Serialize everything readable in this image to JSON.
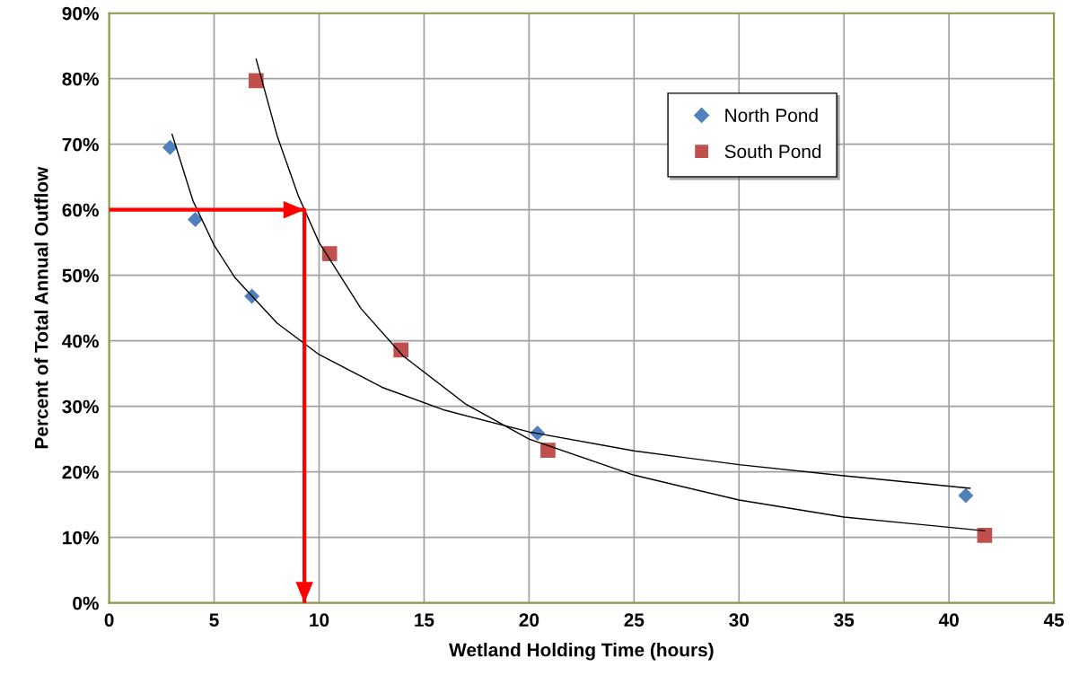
{
  "chart_data": {
    "type": "scatter",
    "xlabel": "Wetland Holding Time (hours)",
    "ylabel": "Percent of Total Annual Outflow",
    "xlim": [
      0,
      45
    ],
    "xticks": [
      0,
      5,
      10,
      15,
      20,
      25,
      30,
      35,
      40,
      45
    ],
    "ylim": [
      0,
      90
    ],
    "yticks": [
      {
        "value": 0,
        "label": "0%"
      },
      {
        "value": 10,
        "label": "10%"
      },
      {
        "value": 20,
        "label": "20%"
      },
      {
        "value": 30,
        "label": "30%"
      },
      {
        "value": 40,
        "label": "40%"
      },
      {
        "value": 50,
        "label": "50%"
      },
      {
        "value": 60,
        "label": "60%"
      },
      {
        "value": 70,
        "label": "70%"
      },
      {
        "value": 80,
        "label": "80%"
      },
      {
        "value": 90,
        "label": "90%"
      }
    ],
    "grid": true,
    "legend": "top right",
    "series": [
      {
        "name": "North Pond",
        "marker": "diamond",
        "color": "#4f81bd",
        "x": [
          2.9,
          4.1,
          6.8,
          20.4,
          40.8
        ],
        "values": [
          69.5,
          58.5,
          46.8,
          25.9,
          16.4
        ]
      },
      {
        "name": "South Pond",
        "marker": "square",
        "color": "#c0504d",
        "x": [
          7.0,
          10.5,
          13.9,
          20.9,
          41.7
        ],
        "values": [
          79.7,
          53.3,
          38.6,
          23.3,
          10.3
        ]
      },
      {
        "type": "line",
        "color": "#000000",
        "x": [
          3,
          4,
          5,
          6,
          8,
          10,
          13,
          16,
          20,
          25,
          30,
          35,
          41
        ],
        "values": [
          71.5,
          61.3,
          54.6,
          49.6,
          42.7,
          37.9,
          32.9,
          29.4,
          26.1,
          23.2,
          21.1,
          19.4,
          17.5
        ]
      },
      {
        "type": "line",
        "color": "#000000",
        "x": [
          7,
          8,
          9,
          10,
          12,
          14,
          17,
          20,
          25,
          30,
          35,
          41.7
        ],
        "values": [
          83,
          71.3,
          62.2,
          55.0,
          44.9,
          37.7,
          30.3,
          25.0,
          19.5,
          15.7,
          13.1,
          11.0
        ]
      },
      {
        "type": "line",
        "color": "#ff0000",
        "x": [
          0,
          9.3,
          9.3
        ],
        "values": [
          60,
          60,
          0
        ]
      }
    ]
  }
}
